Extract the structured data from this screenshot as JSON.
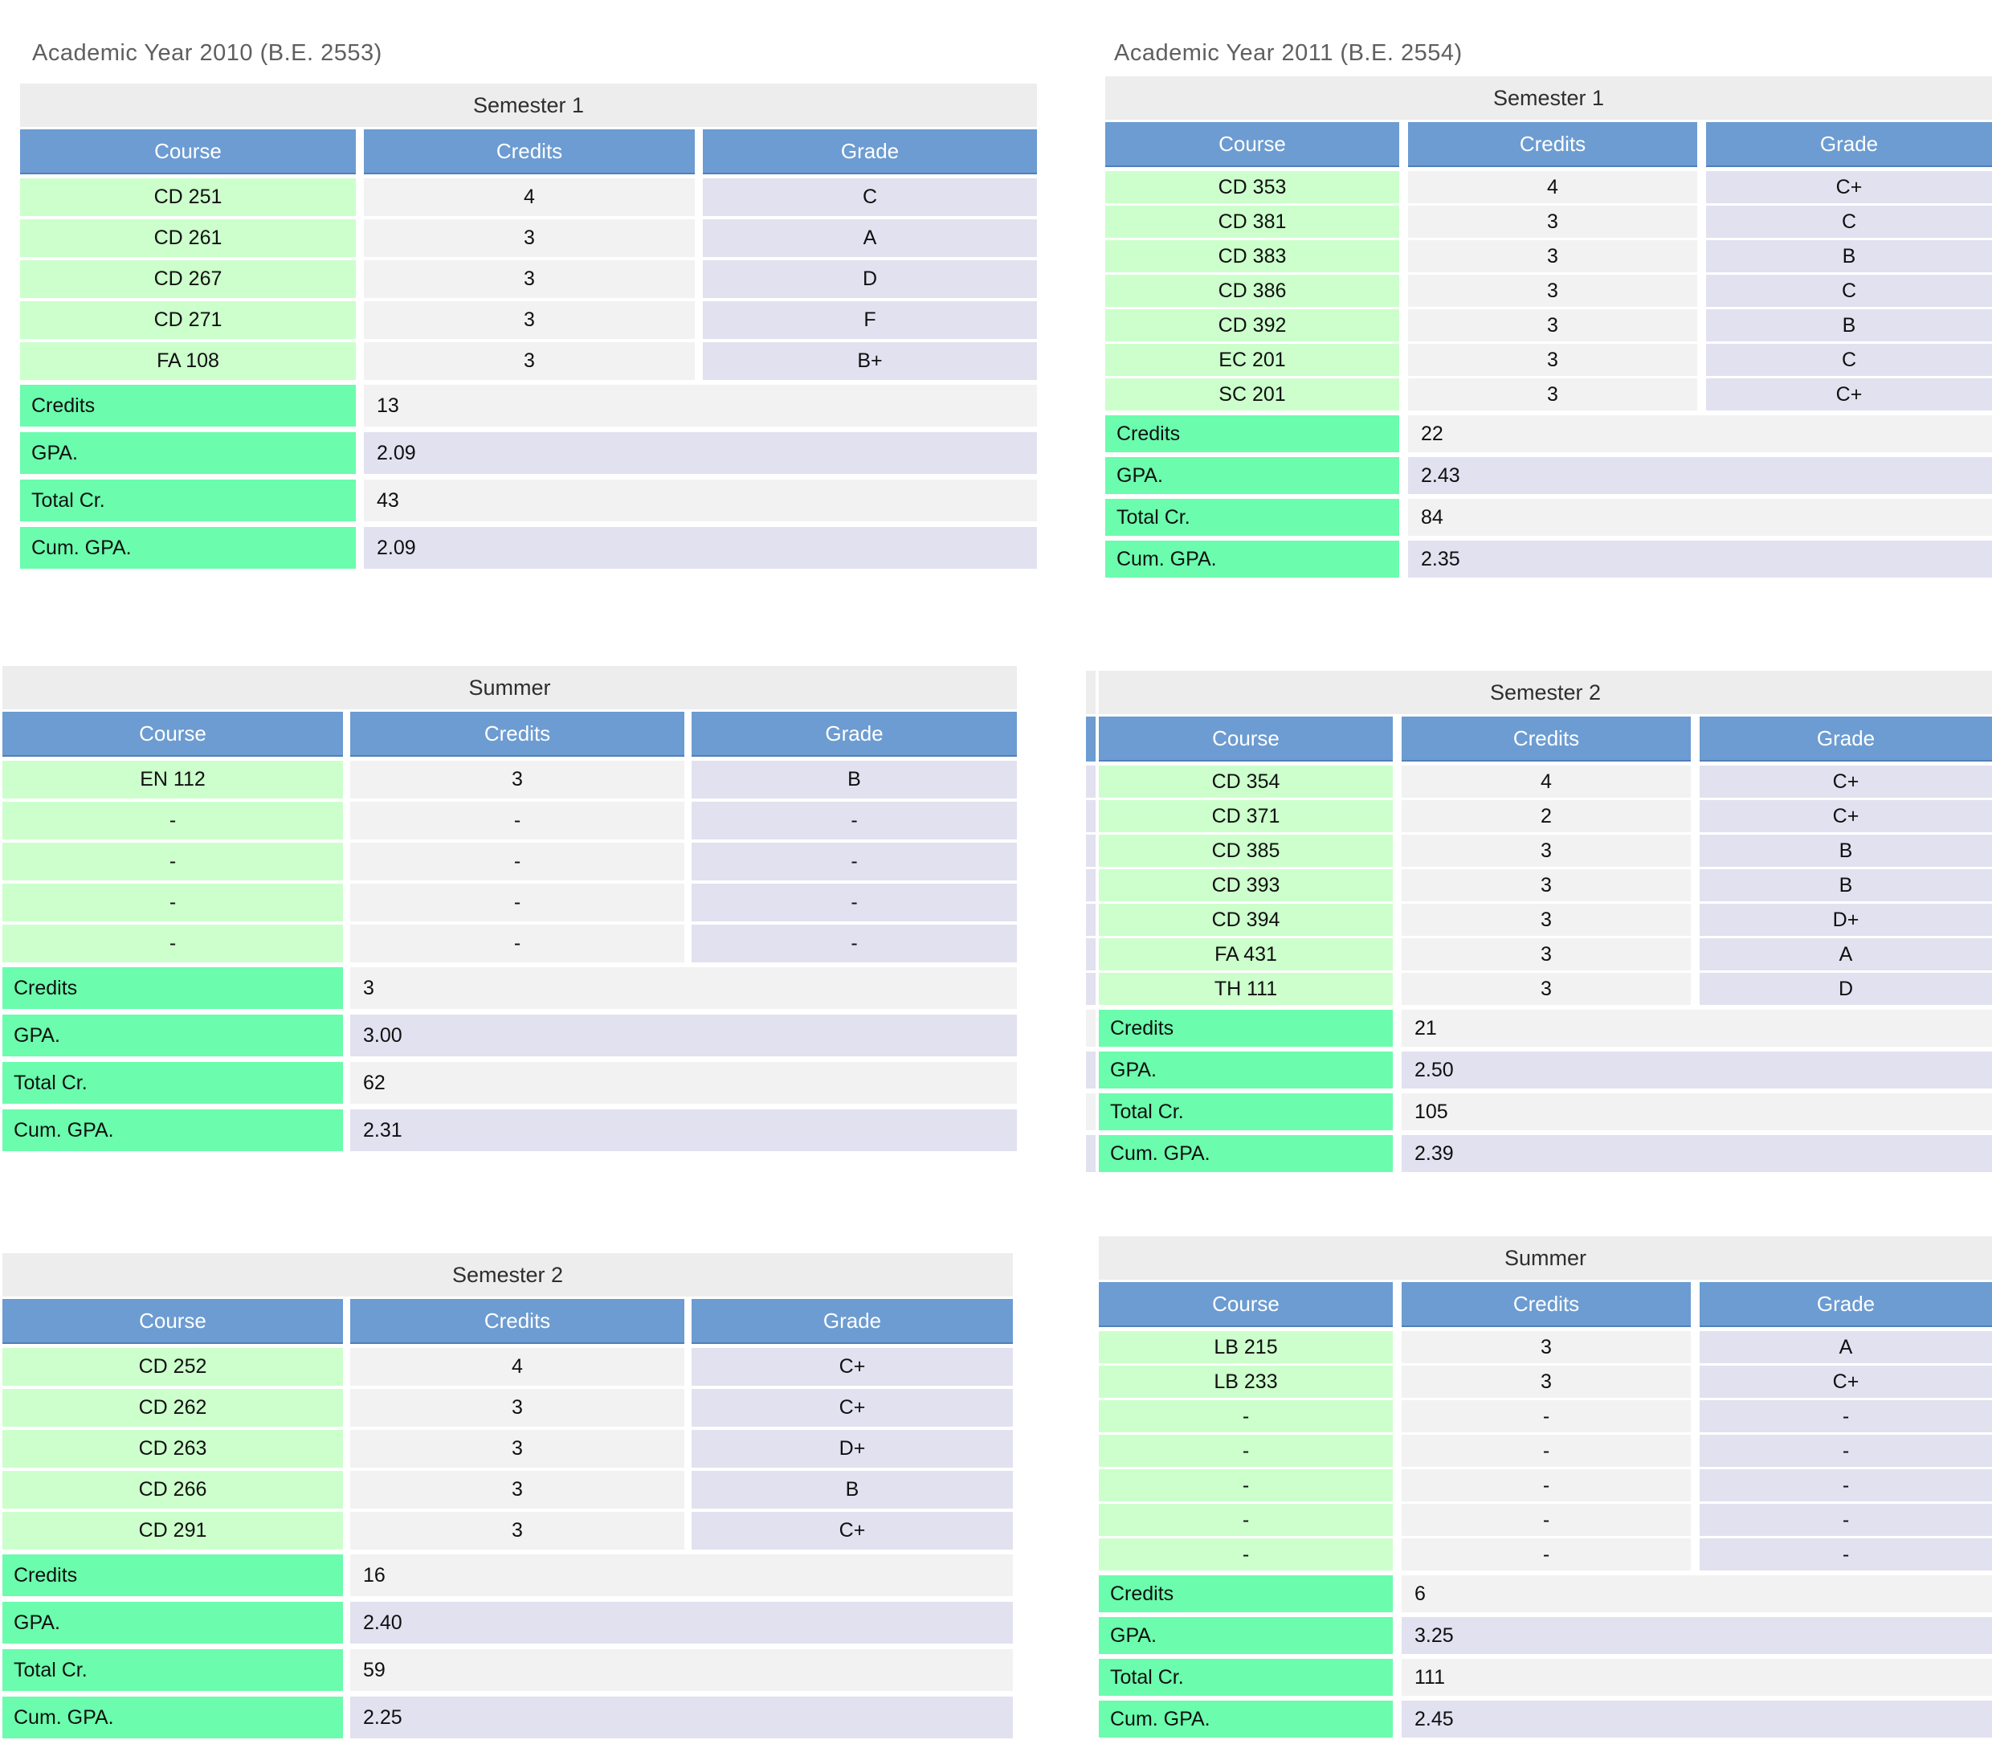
{
  "colors": {
    "header-blue": "#6C9CD1",
    "header-text": "#FFFFFF",
    "course-green": "#CCFFCC",
    "credits-gray": "#F2F2F2",
    "grade-lavender": "#E1E1F0",
    "section-title-gray": "#EDEDED",
    "summary-label-green": "#6BFCAD",
    "summary-value-gray": "#F2F2F2",
    "summary-value-lavender": "#E1E1F0",
    "year-title-text": "#5F5F5F"
  },
  "left": {
    "title": "Academic Year 2010 (B.E. 2553)",
    "tables": [
      {
        "title": "Semester 1",
        "columns": [
          "Course",
          "Credits",
          "Grade"
        ],
        "rows": [
          [
            "CD 251",
            "4",
            "C"
          ],
          [
            "CD 261",
            "3",
            "A"
          ],
          [
            "CD 267",
            "3",
            "D"
          ],
          [
            "CD 271",
            "3",
            "F"
          ],
          [
            "FA 108",
            "3",
            "B+"
          ]
        ],
        "summary": [
          {
            "label": "Credits",
            "value": "13"
          },
          {
            "label": "GPA.",
            "value": "2.09"
          },
          {
            "label": "Total Cr.",
            "value": "43"
          },
          {
            "label": "Cum. GPA.",
            "value": "2.09"
          }
        ]
      },
      {
        "title": "Summer",
        "columns": [
          "Course",
          "Credits",
          "Grade"
        ],
        "rows": [
          [
            "EN 112",
            "3",
            "B"
          ],
          [
            "-",
            "-",
            "-"
          ],
          [
            "-",
            "-",
            "-"
          ],
          [
            "-",
            "-",
            "-"
          ],
          [
            "-",
            "-",
            "-"
          ]
        ],
        "summary": [
          {
            "label": "Credits",
            "value": "3"
          },
          {
            "label": "GPA.",
            "value": "3.00"
          },
          {
            "label": "Total Cr.",
            "value": "62"
          },
          {
            "label": "Cum. GPA.",
            "value": "2.31"
          }
        ]
      },
      {
        "title": "Semester 2",
        "columns": [
          "Course",
          "Credits",
          "Grade"
        ],
        "rows": [
          [
            "CD 252",
            "4",
            "C+"
          ],
          [
            "CD 262",
            "3",
            "C+"
          ],
          [
            "CD 263",
            "3",
            "D+"
          ],
          [
            "CD 266",
            "3",
            "B"
          ],
          [
            "CD 291",
            "3",
            "C+"
          ]
        ],
        "summary": [
          {
            "label": "Credits",
            "value": "16"
          },
          {
            "label": "GPA.",
            "value": "2.40"
          },
          {
            "label": "Total Cr.",
            "value": "59"
          },
          {
            "label": "Cum. GPA.",
            "value": "2.25"
          }
        ]
      }
    ]
  },
  "right": {
    "title": "Academic Year 2011 (B.E. 2554)",
    "tables": [
      {
        "title": "Semester 1",
        "columns": [
          "Course",
          "Credits",
          "Grade"
        ],
        "rows": [
          [
            "CD 353",
            "4",
            "C+"
          ],
          [
            "CD 381",
            "3",
            "C"
          ],
          [
            "CD 383",
            "3",
            "B"
          ],
          [
            "CD 386",
            "3",
            "C"
          ],
          [
            "CD 392",
            "3",
            "B"
          ],
          [
            "EC 201",
            "3",
            "C"
          ],
          [
            "SC 201",
            "3",
            "C+"
          ]
        ],
        "summary": [
          {
            "label": "Credits",
            "value": "22"
          },
          {
            "label": "GPA.",
            "value": "2.43"
          },
          {
            "label": "Total Cr.",
            "value": "84"
          },
          {
            "label": "Cum. GPA.",
            "value": "2.35"
          }
        ]
      },
      {
        "title": "Semester 2",
        "columns": [
          "Course",
          "Credits",
          "Grade"
        ],
        "rows": [
          [
            "CD 354",
            "4",
            "C+"
          ],
          [
            "CD 371",
            "2",
            "C+"
          ],
          [
            "CD 385",
            "3",
            "B"
          ],
          [
            "CD 393",
            "3",
            "B"
          ],
          [
            "CD 394",
            "3",
            "D+"
          ],
          [
            "FA 431",
            "3",
            "A"
          ],
          [
            "TH 111",
            "3",
            "D"
          ]
        ],
        "summary": [
          {
            "label": "Credits",
            "value": "21"
          },
          {
            "label": "GPA.",
            "value": "2.50"
          },
          {
            "label": "Total Cr.",
            "value": "105"
          },
          {
            "label": "Cum. GPA.",
            "value": "2.39"
          }
        ]
      },
      {
        "title": "Summer",
        "columns": [
          "Course",
          "Credits",
          "Grade"
        ],
        "rows": [
          [
            "LB 215",
            "3",
            "A"
          ],
          [
            "LB 233",
            "3",
            "C+"
          ],
          [
            "-",
            "-",
            "-"
          ],
          [
            "-",
            "-",
            "-"
          ],
          [
            "-",
            "-",
            "-"
          ],
          [
            "-",
            "-",
            "-"
          ],
          [
            "-",
            "-",
            "-"
          ]
        ],
        "summary": [
          {
            "label": "Credits",
            "value": "6"
          },
          {
            "label": "GPA.",
            "value": "3.25"
          },
          {
            "label": "Total Cr.",
            "value": "111"
          },
          {
            "label": "Cum. GPA.",
            "value": "2.45"
          }
        ]
      }
    ]
  }
}
